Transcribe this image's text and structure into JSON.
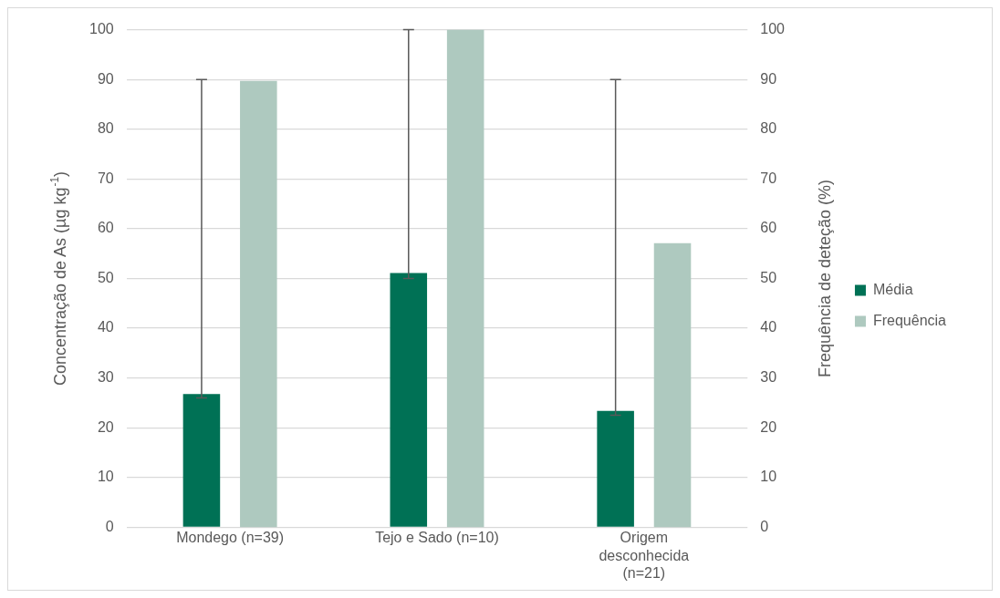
{
  "chart_data": {
    "type": "bar",
    "categories": [
      "Mondego (n=39)",
      "Tejo e Sado (n=10)",
      "Origem desconhecida (n=21)"
    ],
    "series": [
      {
        "name": "Média",
        "color": "#007155",
        "values": [
          26.8,
          51.1,
          23.4
        ],
        "errors": [
          [
            26,
            90
          ],
          [
            50,
            100
          ],
          [
            22.5,
            90
          ]
        ]
      },
      {
        "name": "Frequência",
        "color": "#aec9bf",
        "values": [
          89.7,
          100,
          57.1
        ],
        "axis": "y2"
      }
    ],
    "ylabel": "Concentração de As (µg kg$^{-1}$)",
    "y2label": "Frequência de deteção (%)",
    "ylim": [
      0,
      100
    ],
    "yticks": [
      0,
      10,
      20,
      30,
      40,
      50,
      60,
      70,
      80,
      90,
      100
    ],
    "y2lim": [
      0,
      100
    ],
    "y2ticks": [
      0,
      10,
      20,
      30,
      40,
      50,
      60,
      70,
      80,
      90,
      100
    ],
    "grid": "y",
    "legend": "right"
  }
}
